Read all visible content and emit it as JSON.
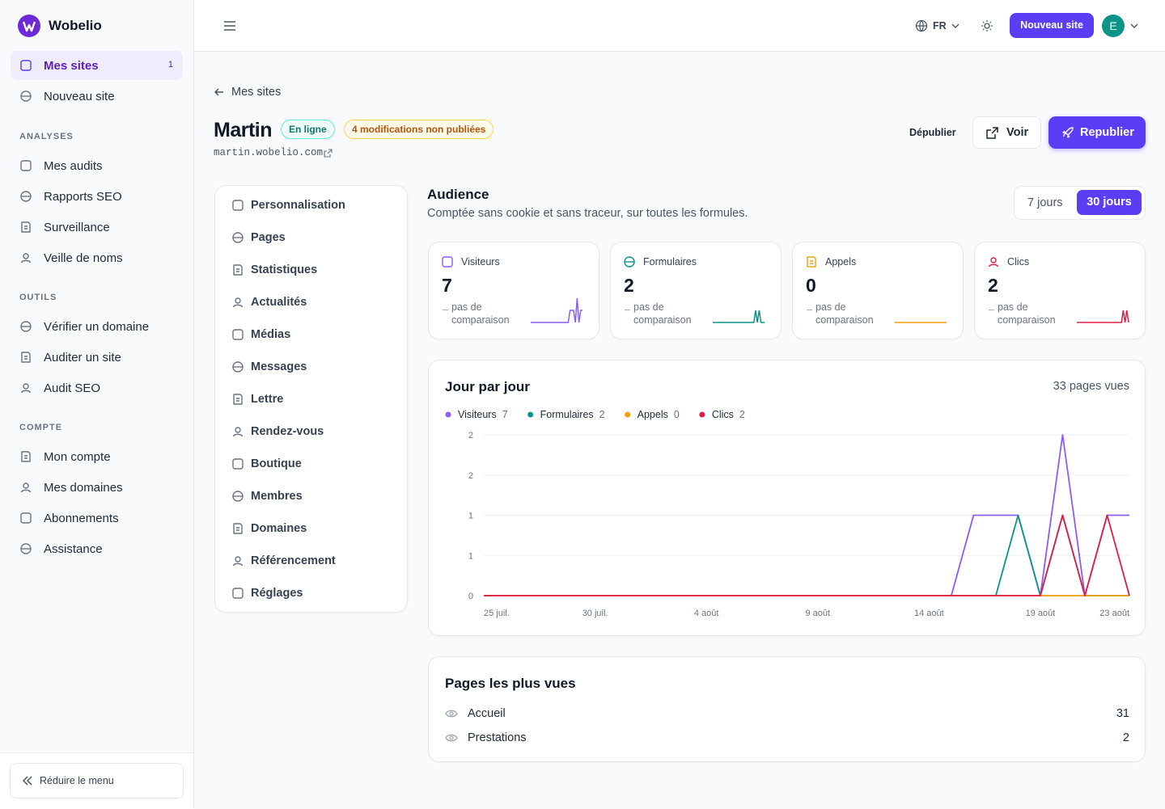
{
  "sidebar": {
    "brand": "Wobelio",
    "primary": [
      {
        "label": "Mes sites",
        "badge": 1
      },
      {
        "label": "Nouveau site"
      }
    ],
    "sections": [
      {
        "title": "ANALYSES",
        "items": [
          "Mes audits",
          "Rapports SEO",
          "Surveillance",
          "Veille de noms"
        ]
      },
      {
        "title": "OUTILS",
        "items": [
          "Vérifier un domaine",
          "Auditer un site",
          "Audit SEO"
        ]
      },
      {
        "title": "COMPTE",
        "items": [
          "Mon compte",
          "Mes domaines",
          "Abonnements",
          "Assistance"
        ]
      }
    ],
    "collapse": "Réduire le menu"
  },
  "topbar": {
    "lang": "FR",
    "new_site": "Nouveau site",
    "avatar": "E"
  },
  "site": {
    "back": "Mes sites",
    "name": "Martin",
    "status": "En ligne",
    "pending": "4 modifications non publiées",
    "domain": "martin.wobelio.com",
    "unpublish": "Dépublier",
    "view": "Voir",
    "republish": "Republier"
  },
  "menu": [
    "Personnalisation",
    "Pages",
    "Statistiques",
    "Actualités",
    "Médias",
    "Messages",
    "Lettre",
    "Rendez-vous",
    "Boutique",
    "Membres",
    "Domaines",
    "Référencement",
    "Réglages"
  ],
  "audience": {
    "title": "Audience",
    "subtitle": "Comptée sans cookie et sans traceur, sur toutes les formules.",
    "ranges": [
      "7 jours",
      "30 jours"
    ],
    "no_change": "–",
    "note": "pas de comparaison"
  },
  "chart_data": {
    "type": "line",
    "title": "Jour par jour",
    "summary": "33 pages vues",
    "categories": [
      "25 juil.",
      null,
      null,
      null,
      null,
      "30 juil.",
      null,
      null,
      null,
      null,
      "4 août",
      null,
      null,
      null,
      null,
      "9 août",
      null,
      null,
      null,
      null,
      "14 août",
      null,
      null,
      null,
      null,
      "19 août",
      null,
      null,
      null,
      "23 août"
    ],
    "series": [
      {
        "name": "Visiteurs",
        "total": 7,
        "color": "#8b5cf6",
        "values": [
          0,
          0,
          0,
          0,
          0,
          0,
          0,
          0,
          0,
          0,
          0,
          0,
          0,
          0,
          0,
          0,
          0,
          0,
          0,
          0,
          0,
          0,
          1,
          1,
          1,
          0,
          2,
          0,
          1,
          1
        ]
      },
      {
        "name": "Formulaires",
        "total": 2,
        "color": "#0d9488",
        "values": [
          0,
          0,
          0,
          0,
          0,
          0,
          0,
          0,
          0,
          0,
          0,
          0,
          0,
          0,
          0,
          0,
          0,
          0,
          0,
          0,
          0,
          0,
          0,
          0,
          1,
          0,
          1,
          0,
          0,
          0
        ]
      },
      {
        "name": "Appels",
        "total": 0,
        "color": "#f59e0b",
        "values": [
          0,
          0,
          0,
          0,
          0,
          0,
          0,
          0,
          0,
          0,
          0,
          0,
          0,
          0,
          0,
          0,
          0,
          0,
          0,
          0,
          0,
          0,
          0,
          0,
          0,
          0,
          0,
          0,
          0,
          0
        ]
      },
      {
        "name": "Clics",
        "total": 2,
        "color": "#e11d48",
        "values": [
          0,
          0,
          0,
          0,
          0,
          0,
          0,
          0,
          0,
          0,
          0,
          0,
          0,
          0,
          0,
          0,
          0,
          0,
          0,
          0,
          0,
          0,
          0,
          0,
          0,
          0,
          1,
          0,
          1,
          0
        ]
      }
    ],
    "ylim": [
      0,
      2
    ],
    "yticks": [
      0,
      {
        "value": 0.5,
        "label": "1"
      },
      1,
      {
        "value": 1.5,
        "label": "2"
      },
      2
    ],
    "grid": true
  },
  "top_pages": {
    "title": "Pages les plus vues",
    "rows": [
      {
        "page": "Accueil",
        "views": 31
      },
      {
        "page": "Prestations",
        "views": 2
      }
    ]
  }
}
